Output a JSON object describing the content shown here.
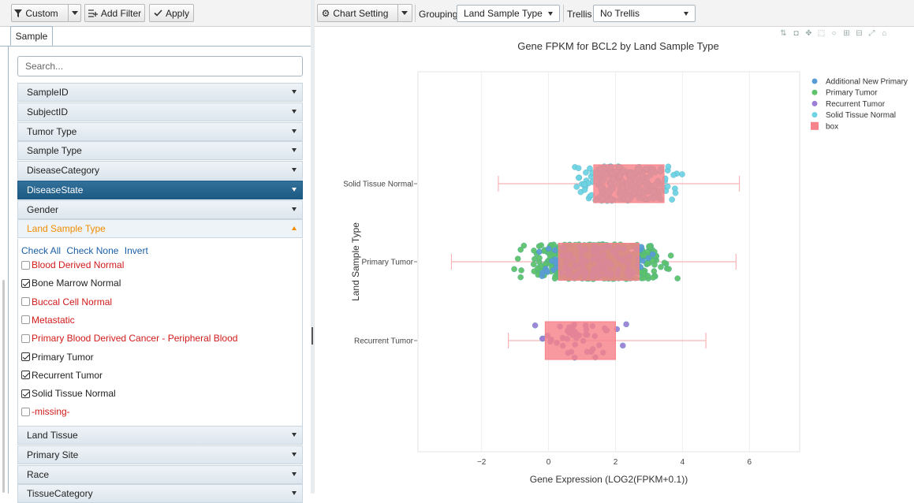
{
  "left_toolbar": {
    "custom_label": "Custom",
    "add_filter_label": "Add Filter",
    "apply_label": "Apply"
  },
  "tabs": [
    {
      "label": "Sample"
    }
  ],
  "search": {
    "placeholder": "Search..."
  },
  "filters_top": [
    {
      "label": "SampleID"
    },
    {
      "label": "SubjectID"
    },
    {
      "label": "Tumor Type"
    },
    {
      "label": "Sample Type"
    },
    {
      "label": "DiseaseCategory"
    },
    {
      "label": "DiseaseState"
    },
    {
      "label": "Gender"
    },
    {
      "label": "Land Sample Type"
    }
  ],
  "value_links": {
    "check_all": "Check All",
    "check_none": "Check None",
    "invert": "Invert"
  },
  "values": [
    {
      "label": "Blood Derived Normal",
      "checked": false
    },
    {
      "label": "Bone Marrow Normal",
      "checked": true
    },
    {
      "label": "Buccal Cell Normal",
      "checked": false
    },
    {
      "label": "Metastatic",
      "checked": false
    },
    {
      "label": "Primary Blood Derived Cancer - Peripheral Blood",
      "checked": false
    },
    {
      "label": "Primary Tumor",
      "checked": true
    },
    {
      "label": "Recurrent Tumor",
      "checked": true
    },
    {
      "label": "Solid Tissue Normal",
      "checked": true
    },
    {
      "label": "-missing-",
      "checked": false
    }
  ],
  "filters_bottom": [
    {
      "label": "Land Tissue"
    },
    {
      "label": "Primary Site"
    },
    {
      "label": "Race"
    },
    {
      "label": "TissueCategory"
    }
  ],
  "right_toolbar": {
    "chart_setting_label": "Chart Setting",
    "grouping_label": "Grouping",
    "grouping_value": "Land Sample Type",
    "trellis_label": "Trellis",
    "trellis_value": "No Trellis"
  },
  "modebar_icons": [
    "compare-icon",
    "camera-icon",
    "pan-icon",
    "box-select-icon",
    "lasso-icon",
    "zoom-in-icon",
    "zoom-out-icon",
    "autoscale-icon",
    "home-icon"
  ],
  "colors": {
    "additional_new_primary": "#5b9bd5",
    "primary_tumor": "#5ec26a",
    "recurrent_tumor": "#9b7fd6",
    "solid_tissue_normal": "#6fd3e3",
    "box": "#f7838a",
    "dark_filter": "#1d5a84",
    "open_filter": "#f08c00",
    "unchecked_value": "#d11a1a"
  },
  "chart_data": {
    "type": "box",
    "title": "Gene FPKM for BCL2 by Land Sample Type",
    "xlabel": "Gene Expression (LOG2(FPKM+0.1))",
    "ylabel": "Land Sample Type",
    "xlim": [
      -3.9,
      7.5
    ],
    "xticks": [
      -2,
      0,
      2,
      4,
      6
    ],
    "xtick_labels": [
      "−2",
      "0",
      "2",
      "4",
      "6"
    ],
    "grid": true,
    "legend_position": "top-right",
    "legend": [
      "Additional New Primary",
      "Primary Tumor",
      "Recurrent Tumor",
      "Solid Tissue Normal",
      "box"
    ],
    "categories": [
      "Solid Tissue Normal",
      "Primary Tumor",
      "Recurrent Tumor"
    ],
    "boxes": [
      {
        "category": "Solid Tissue Normal",
        "whisker_low": -1.5,
        "q1": 1.35,
        "q3": 3.45,
        "whisker_high": 5.7
      },
      {
        "category": "Primary Tumor",
        "whisker_low": -2.9,
        "q1": 0.3,
        "q3": 2.7,
        "whisker_high": 5.6
      },
      {
        "category": "Recurrent Tumor",
        "whisker_low": -1.2,
        "q1": -0.1,
        "q3": 2.0,
        "whisker_high": 4.7
      }
    ]
  }
}
